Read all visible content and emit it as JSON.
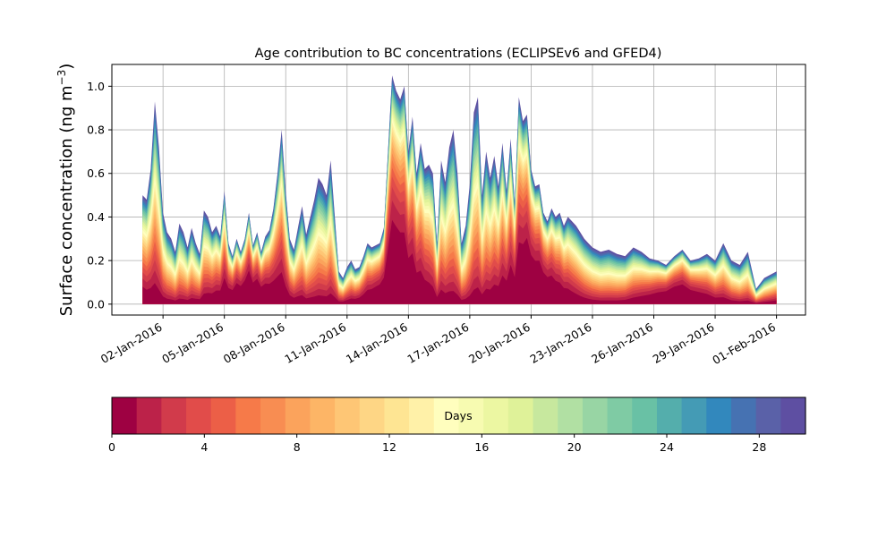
{
  "chart_data": {
    "type": "area",
    "stacked": true,
    "title": "Age contribution to BC concentrations (ECLIPSEv6 and GFED4)",
    "ylabel": "Surface concentration (ng m",
    "ylabel_sup": "−3",
    "ylabel_close": ")",
    "xlabel": "",
    "ylim": [
      -0.05,
      1.1
    ],
    "xlim_days": [
      0,
      33.8
    ],
    "grid": true,
    "y_ticks": [
      0.0,
      0.2,
      0.4,
      0.6,
      0.8,
      1.0
    ],
    "y_tick_labels": [
      "0.0",
      "0.2",
      "0.4",
      "0.6",
      "0.8",
      "1.0"
    ],
    "x_ticks": [
      1,
      4,
      7,
      10,
      13,
      16,
      19,
      22,
      25,
      28,
      31
    ],
    "x_tick_labels": [
      "02-Jan-2016",
      "05-Jan-2016",
      "08-Jan-2016",
      "11-Jan-2016",
      "14-Jan-2016",
      "17-Jan-2016",
      "20-Jan-2016",
      "23-Jan-2016",
      "26-Jan-2016",
      "29-Jan-2016",
      "01-Feb-2016"
    ],
    "x_units": "days since 01-Jan-2016",
    "total": {
      "x": [
        0,
        0.2,
        0.4,
        0.6,
        0.8,
        1.0,
        1.2,
        1.4,
        1.6,
        1.8,
        2.0,
        2.2,
        2.4,
        2.6,
        2.8,
        3.0,
        3.2,
        3.4,
        3.6,
        3.8,
        4.0,
        4.2,
        4.4,
        4.6,
        4.8,
        5.0,
        5.2,
        5.4,
        5.6,
        5.8,
        6.0,
        6.2,
        6.4,
        6.6,
        6.8,
        7.0,
        7.2,
        7.4,
        7.6,
        7.8,
        8.0,
        8.2,
        8.4,
        8.6,
        8.8,
        9.0,
        9.2,
        9.4,
        9.6,
        9.8,
        10.0,
        10.2,
        10.4,
        10.6,
        10.8,
        11.0,
        11.2,
        11.4,
        11.6,
        11.8,
        12.0,
        12.2,
        12.4,
        12.6,
        12.8,
        13.0,
        13.2,
        13.4,
        13.6,
        13.8,
        14.0,
        14.2,
        14.4,
        14.6,
        14.8,
        15.0,
        15.2,
        15.4,
        15.6,
        15.8,
        16.0,
        16.2,
        16.4,
        16.6,
        16.8,
        17.0,
        17.2,
        17.4,
        17.6,
        17.8,
        18.0,
        18.2,
        18.4,
        18.6,
        18.8,
        19.0,
        19.2,
        19.4,
        19.6,
        19.8,
        20.0,
        20.2,
        20.4,
        20.6,
        20.8,
        21.0,
        21.2,
        21.4,
        21.6,
        21.8,
        22.0,
        22.4,
        22.8,
        23.2,
        23.6,
        24.0,
        24.4,
        24.8,
        25.2,
        25.6,
        26.0,
        26.4,
        26.8,
        27.2,
        27.6,
        28.0,
        28.4,
        28.8,
        29.2,
        29.6,
        30.0,
        30.4,
        30.8,
        31.0
      ],
      "values": [
        0.5,
        0.48,
        0.62,
        0.93,
        0.72,
        0.42,
        0.33,
        0.3,
        0.24,
        0.37,
        0.33,
        0.26,
        0.35,
        0.28,
        0.23,
        0.43,
        0.4,
        0.33,
        0.36,
        0.31,
        0.52,
        0.28,
        0.22,
        0.3,
        0.24,
        0.3,
        0.42,
        0.27,
        0.33,
        0.24,
        0.31,
        0.34,
        0.44,
        0.6,
        0.8,
        0.52,
        0.3,
        0.25,
        0.35,
        0.45,
        0.32,
        0.4,
        0.48,
        0.58,
        0.55,
        0.5,
        0.66,
        0.4,
        0.15,
        0.12,
        0.17,
        0.2,
        0.16,
        0.17,
        0.22,
        0.28,
        0.26,
        0.27,
        0.28,
        0.35,
        0.7,
        1.05,
        0.98,
        0.94,
        1.0,
        0.7,
        0.86,
        0.6,
        0.74,
        0.62,
        0.64,
        0.6,
        0.28,
        0.66,
        0.56,
        0.72,
        0.8,
        0.6,
        0.28,
        0.36,
        0.55,
        0.88,
        0.95,
        0.5,
        0.7,
        0.58,
        0.68,
        0.54,
        0.74,
        0.52,
        0.76,
        0.46,
        0.95,
        0.84,
        0.87,
        0.62,
        0.54,
        0.55,
        0.42,
        0.38,
        0.44,
        0.4,
        0.42,
        0.36,
        0.4,
        0.38,
        0.36,
        0.33,
        0.3,
        0.28,
        0.26,
        0.24,
        0.25,
        0.23,
        0.22,
        0.26,
        0.24,
        0.21,
        0.2,
        0.18,
        0.22,
        0.25,
        0.2,
        0.21,
        0.23,
        0.2,
        0.28,
        0.2,
        0.18,
        0.24,
        0.07,
        0.12,
        0.14,
        0.15
      ]
    },
    "colorbar": {
      "label": "Days",
      "range": [
        0,
        30
      ],
      "ticks": [
        0,
        4,
        8,
        12,
        16,
        20,
        24,
        28
      ],
      "tick_labels": [
        "0",
        "4",
        "8",
        "12",
        "16",
        "20",
        "24",
        "28"
      ],
      "colors": [
        "#9e0142",
        "#bc2249",
        "#d13b4b",
        "#e14c4a",
        "#ec5f47",
        "#f67a49",
        "#f88d52",
        "#fba35c",
        "#fdb566",
        "#fec675",
        "#fed685",
        "#fee593",
        "#fff1a8",
        "#fffebe",
        "#f7fbb1",
        "#ecf7a2",
        "#dff299",
        "#c7e89e",
        "#b1e0a3",
        "#98d5a4",
        "#7fcba4",
        "#69c1a5",
        "#54aeac",
        "#449bb5",
        "#3288bd",
        "#4672b2",
        "#5a61a8",
        "#5e4fa2"
      ]
    }
  }
}
